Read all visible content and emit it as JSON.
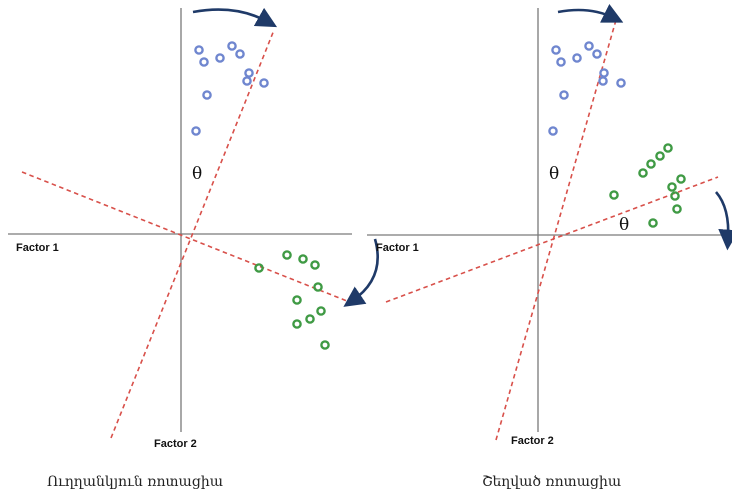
{
  "colors": {
    "rotation_line": "#d8504a",
    "arrow": "#1f3a68",
    "points_top": "#6f86cf",
    "points_bottom": "#3f9a44",
    "axis": "#7a7a7a"
  },
  "panels": [
    {
      "id": "orthogonal",
      "factor1_label": "Factor 1",
      "factor2_label": "Factor 2",
      "theta_label": "θ",
      "caption": "Ուղղանկյուն ռոտացիա"
    },
    {
      "id": "oblique",
      "factor1_label": "Factor 1",
      "factor2_label": "Factor 2",
      "theta_label": "θ",
      "caption": "Շեղված ռոտացիա"
    }
  ]
}
